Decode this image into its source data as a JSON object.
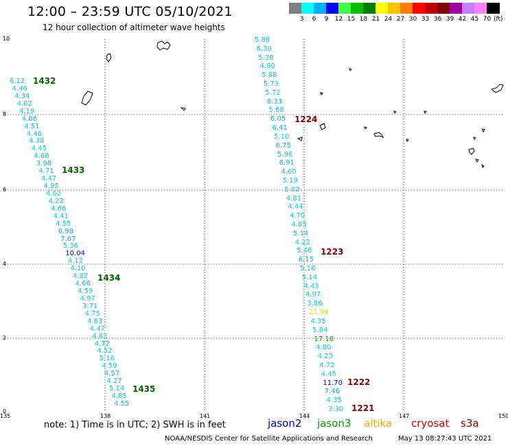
{
  "header": {
    "title": "12:00 – 23:59 UTC 05/10/2021",
    "subtitle": "12 hour collection of altimeter wave heights"
  },
  "legend": {
    "colors": [
      "#808080",
      "#00ffff",
      "#00b0ff",
      "#0000ff",
      "#40ff40",
      "#00c000",
      "#008000",
      "#ffff00",
      "#ffc000",
      "#ff8000",
      "#ff0000",
      "#c00000",
      "#800000",
      "#a000a0",
      "#c080ff",
      "#ff80ff",
      "#000000"
    ],
    "labels": [
      "3",
      "6",
      "9",
      "12",
      "15",
      "18",
      "21",
      "24",
      "27",
      "30",
      "33",
      "36",
      "39",
      "42",
      "45",
      "70"
    ],
    "unit": "(ft)"
  },
  "axes": {
    "y_ticks": [
      "10",
      "8",
      "6",
      "4",
      "2",
      "0"
    ],
    "x_ticks": [
      "135",
      "138",
      "141",
      "144",
      "147",
      "150"
    ]
  },
  "passes": [
    {
      "label": "1432",
      "color": "#006400"
    },
    {
      "label": "1433",
      "color": "#006400"
    },
    {
      "label": "1434",
      "color": "#006400"
    },
    {
      "label": "1435",
      "color": "#006400"
    },
    {
      "label": "1224",
      "color": "#8b0000"
    },
    {
      "label": "1223",
      "color": "#8b0000"
    },
    {
      "label": "1222",
      "color": "#8b0000"
    },
    {
      "label": "1221",
      "color": "#8b0000"
    }
  ],
  "track_jason3": {
    "color": "#00d0d0",
    "values": [
      "6.12",
      "4.46",
      "4.34",
      "4.62",
      "4.19",
      "4.86",
      "4.51",
      "4.46",
      "4.38",
      "4.45",
      "4.68",
      "3.98",
      "4.71",
      "4.47",
      "4.95",
      "4.62",
      "4.22",
      "4.66",
      "4.41",
      "4.55",
      "6.98",
      "7.67",
      "5.36",
      "10.04",
      "4.12",
      "4.10",
      "4.82",
      "4.66",
      "4.59",
      "4.97",
      "3.71",
      "4.75",
      "4.63",
      "4.47",
      "4.63",
      "4.72",
      "4.52",
      "5.16",
      "4.59",
      "4.57",
      "4.27",
      "5.14",
      "4.85",
      "4.55"
    ]
  },
  "track_cryosat": {
    "color": "#00d0d0",
    "values": [
      "5.88",
      "6.30",
      "5.38",
      "4.80",
      "5.88",
      "5.73",
      "5.72",
      "8.33",
      "5.68",
      "6.05",
      "6.41",
      "5.10",
      "6.75",
      "5.96",
      "6.91",
      "4.60",
      "5.19",
      "5.02",
      "4.81",
      "4.44",
      "4.70",
      "4.83",
      "5.14",
      "4.22",
      "5.46",
      "6.15",
      "5.16",
      "5.14",
      "4.43",
      "4.97",
      "3.86",
      "21.99",
      "4.35",
      "5.84",
      "17.18",
      "4.80",
      "4.23",
      "4.72",
      "4.45",
      "11.70",
      "7.46",
      "4.35",
      "3.30"
    ]
  },
  "special_colors": {
    "3.98": "#00b0ff",
    "6.98": "#00b0ff",
    "7.67": "#00b0ff",
    "10.04": "#0000cd",
    "8.33": "#00b0ff",
    "6.05": "#00b0ff",
    "6.41": "#00b0ff",
    "6.75": "#00b0ff",
    "6.91": "#00b0ff",
    "6.15": "#00b0ff",
    "21.99": "#e0e000",
    "17.18": "#00b000",
    "11.70": "#0000cd",
    "7.46": "#00b0ff"
  },
  "footer": {
    "note": "note:  1) Time is in UTC;  2) SWH is in feet",
    "satellites": [
      {
        "name": "jason2",
        "color": "#0000cd"
      },
      {
        "name": "jason3",
        "color": "#00a000"
      },
      {
        "name": "altika",
        "color": "#ffa500"
      },
      {
        "name": "cryosat",
        "color": "#cc0000"
      },
      {
        "name": "s3a",
        "color": "#8b0000"
      }
    ],
    "credit": "NOAA/NESDIS Center for Satellite Applications and Research",
    "stamp": "May 13 08:27:43 UTC 2021"
  }
}
